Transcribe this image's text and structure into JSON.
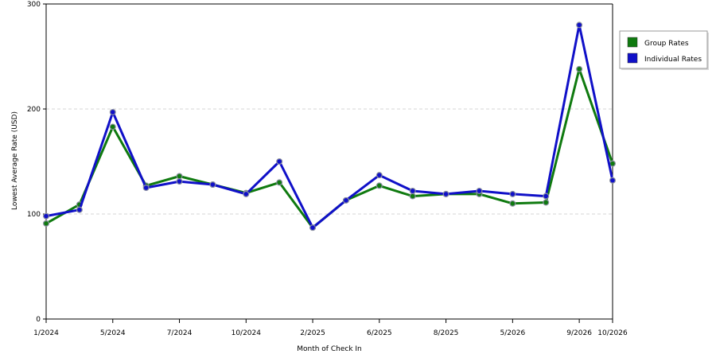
{
  "chart_data": {
    "type": "line",
    "title": "",
    "xlabel": "Month of Check In",
    "ylabel": "Lowest Average Rate (USD)",
    "ylim": [
      0,
      300
    ],
    "y_ticks": [
      0,
      100,
      200,
      300
    ],
    "grid": "horizontal dashed",
    "legend_position": "top-right, outside plot",
    "x_tick_labels": [
      {
        "index": 0,
        "label": "1/2024"
      },
      {
        "index": 2,
        "label": "5/2024"
      },
      {
        "index": 4,
        "label": "7/2024"
      },
      {
        "index": 6,
        "label": "10/2024"
      },
      {
        "index": 8,
        "label": "2/2025"
      },
      {
        "index": 10,
        "label": "6/2025"
      },
      {
        "index": 12,
        "label": "8/2025"
      },
      {
        "index": 14,
        "label": "5/2026"
      },
      {
        "index": 16,
        "label": "9/2026"
      },
      {
        "index": 17,
        "label": "10/2026"
      }
    ],
    "point_count": 18,
    "series": [
      {
        "name": "Group Rates",
        "color": "#0f7a0f",
        "values": [
          91,
          109,
          183,
          127,
          136,
          128,
          120,
          130,
          87,
          113,
          127,
          117,
          119,
          119,
          110,
          111,
          238,
          148
        ]
      },
      {
        "name": "Individual Rates",
        "color": "#1010c8",
        "values": [
          98,
          104,
          197,
          125,
          131,
          128,
          119,
          150,
          87,
          113,
          137,
          122,
          119,
          122,
          119,
          117,
          280,
          132
        ]
      }
    ]
  }
}
